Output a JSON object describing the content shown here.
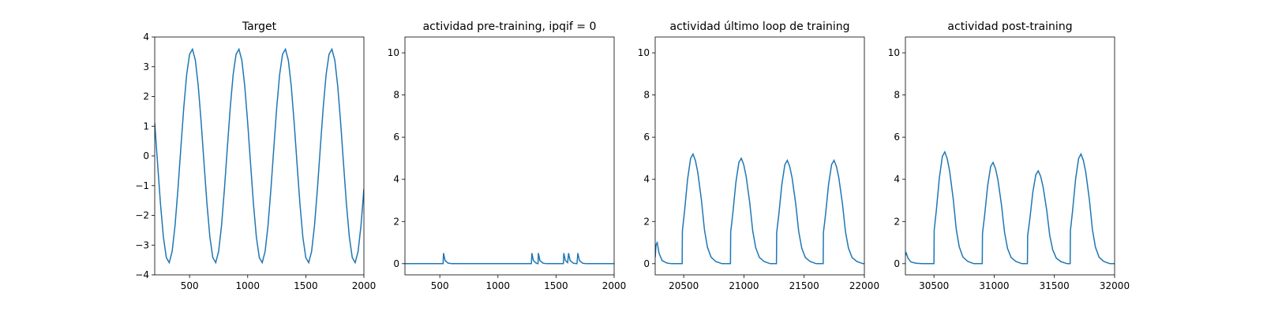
{
  "chart_data": [
    {
      "type": "line",
      "title": "Target",
      "color": "#1f77b4",
      "x": [
        200,
        225,
        250,
        275,
        300,
        325,
        350,
        375,
        400,
        425,
        450,
        475,
        500,
        525,
        550,
        575,
        600,
        625,
        650,
        675,
        700,
        725,
        750,
        775,
        800,
        825,
        850,
        875,
        900,
        925,
        950,
        975,
        1000,
        1025,
        1050,
        1075,
        1100,
        1125,
        1150,
        1175,
        1200,
        1225,
        1250,
        1275,
        1300,
        1325,
        1350,
        1375,
        1400,
        1425,
        1450,
        1475,
        1500,
        1525,
        1550,
        1575,
        1600,
        1625,
        1650,
        1675,
        1700,
        1725,
        1750,
        1775,
        1800,
        1825,
        1850,
        1875,
        1900,
        1925,
        1950,
        1975,
        2000
      ],
      "values": [
        1.11,
        -0.28,
        -1.63,
        -2.74,
        -3.42,
        -3.59,
        -3.21,
        -2.34,
        -1.11,
        0.28,
        1.63,
        2.74,
        3.42,
        3.59,
        3.21,
        2.34,
        1.11,
        -0.28,
        -1.63,
        -2.74,
        -3.42,
        -3.59,
        -3.21,
        -2.34,
        -1.11,
        0.28,
        1.63,
        2.74,
        3.42,
        3.59,
        3.21,
        2.34,
        1.11,
        -0.28,
        -1.63,
        -2.74,
        -3.42,
        -3.59,
        -3.21,
        -2.34,
        -1.11,
        0.28,
        1.63,
        2.74,
        3.42,
        3.59,
        3.21,
        2.34,
        1.11,
        -0.28,
        -1.63,
        -2.74,
        -3.42,
        -3.59,
        -3.21,
        -2.34,
        -1.11,
        0.28,
        1.63,
        2.74,
        3.42,
        3.59,
        3.21,
        2.34,
        1.11,
        -0.28,
        -1.63,
        -2.74,
        -3.42,
        -3.59,
        -3.21,
        -2.34,
        -1.11
      ],
      "xlim": [
        200,
        2000
      ],
      "ylim": [
        -4,
        4
      ],
      "xticks": [
        500,
        1000,
        1500,
        2000
      ],
      "yticks": [
        {
          "value": -4,
          "label": "−4"
        },
        {
          "value": -3,
          "label": "−3"
        },
        {
          "value": -2,
          "label": "−2"
        },
        {
          "value": -1,
          "label": "−1"
        },
        0,
        1,
        2,
        3,
        4
      ]
    },
    {
      "type": "line",
      "title": "actividad pre-training, ipqif = 0",
      "color": "#1f77b4",
      "x": [
        200,
        528,
        532,
        545,
        570,
        600,
        1288,
        1292,
        1305,
        1330,
        1345,
        1348,
        1361,
        1390,
        1420,
        1563,
        1567,
        1580,
        1600,
        1608,
        1621,
        1650,
        1680,
        1688,
        1701,
        1730,
        1760,
        2000
      ],
      "values": [
        0,
        0,
        0.5,
        0.15,
        0.03,
        0,
        0,
        0.5,
        0.15,
        0.02,
        0,
        0.5,
        0.15,
        0.02,
        0,
        0,
        0.5,
        0.15,
        0.05,
        0.5,
        0.15,
        0.02,
        0,
        0.5,
        0.15,
        0.02,
        0,
        0
      ],
      "xlim": [
        200,
        2000
      ],
      "ylim": [
        -0.53,
        10.75
      ],
      "xticks": [
        500,
        1000,
        1500,
        2000
      ],
      "yticks": [
        0,
        2,
        4,
        6,
        8,
        10
      ]
    },
    {
      "type": "line",
      "title": "actividad último loop de training",
      "color": "#1f77b4",
      "x": [
        20263,
        20270,
        20280,
        20295,
        20320,
        20360,
        20400,
        20487,
        20489,
        20507,
        20532,
        20557,
        20577,
        20597,
        20617,
        20647,
        20672,
        20697,
        20727,
        20767,
        20817,
        20888,
        20890,
        20908,
        20933,
        20958,
        20978,
        20998,
        21018,
        21048,
        21073,
        21098,
        21128,
        21168,
        21218,
        21270,
        21272,
        21290,
        21315,
        21340,
        21360,
        21380,
        21400,
        21430,
        21455,
        21480,
        21510,
        21550,
        21600,
        21658,
        21660,
        21678,
        21703,
        21728,
        21748,
        21768,
        21788,
        21818,
        21843,
        21868,
        21898,
        21938,
        21988,
        22000
      ],
      "values": [
        0.3,
        0.9,
        1.0,
        0.5,
        0.15,
        0.03,
        0,
        0,
        1.56,
        2.5,
        4.0,
        4.99,
        5.2,
        4.89,
        4.32,
        3.02,
        1.61,
        0.78,
        0.31,
        0.1,
        0,
        0,
        1.5,
        2.4,
        3.85,
        4.8,
        5.0,
        4.7,
        4.15,
        2.9,
        1.55,
        0.75,
        0.3,
        0.1,
        0,
        0,
        1.47,
        2.35,
        3.77,
        4.7,
        4.9,
        4.61,
        4.07,
        2.84,
        1.52,
        0.74,
        0.29,
        0.1,
        0,
        0,
        1.47,
        2.35,
        3.77,
        4.7,
        4.9,
        4.61,
        4.07,
        2.84,
        1.52,
        0.74,
        0.29,
        0.1,
        0,
        0
      ],
      "xlim": [
        20263,
        22000
      ],
      "ylim": [
        -0.53,
        10.75
      ],
      "xticks": [
        20500,
        21000,
        21500,
        22000
      ],
      "yticks": [
        0,
        2,
        4,
        6,
        8,
        10
      ]
    },
    {
      "type": "line",
      "title": "actividad post-training",
      "color": "#1f77b4",
      "x": [
        30263,
        30270,
        30285,
        30310,
        30350,
        30400,
        30500,
        30502,
        30520,
        30545,
        30570,
        30590,
        30610,
        30630,
        30660,
        30685,
        30710,
        30740,
        30780,
        30830,
        30901,
        30903,
        30921,
        30946,
        30971,
        30991,
        31011,
        31031,
        31061,
        31086,
        31111,
        31141,
        31181,
        31231,
        31276,
        31278,
        31296,
        31321,
        31346,
        31366,
        31386,
        31406,
        31436,
        31461,
        31486,
        31516,
        31556,
        31606,
        31631,
        31633,
        31651,
        31676,
        31701,
        31721,
        31741,
        31761,
        31791,
        31816,
        31841,
        31871,
        31911,
        31961,
        32000
      ],
      "values": [
        0.4,
        0.5,
        0.25,
        0.08,
        0.02,
        0,
        0,
        1.59,
        2.54,
        4.08,
        5.09,
        5.3,
        4.98,
        4.4,
        3.07,
        1.64,
        0.8,
        0.32,
        0.11,
        0,
        0,
        1.44,
        2.3,
        3.7,
        4.61,
        4.8,
        4.51,
        3.98,
        2.78,
        1.49,
        0.72,
        0.29,
        0.1,
        0,
        0,
        1.32,
        2.11,
        3.39,
        4.22,
        4.4,
        4.14,
        3.65,
        2.55,
        1.36,
        0.66,
        0.26,
        0.09,
        0,
        0,
        1.56,
        2.5,
        4.0,
        4.99,
        5.2,
        4.89,
        4.32,
        3.02,
        1.61,
        0.78,
        0.31,
        0.1,
        0,
        0
      ],
      "xlim": [
        30263,
        32000
      ],
      "ylim": [
        -0.53,
        10.75
      ],
      "xticks": [
        30500,
        31000,
        31500,
        32000
      ],
      "yticks": [
        0,
        2,
        4,
        6,
        8,
        10
      ]
    }
  ]
}
